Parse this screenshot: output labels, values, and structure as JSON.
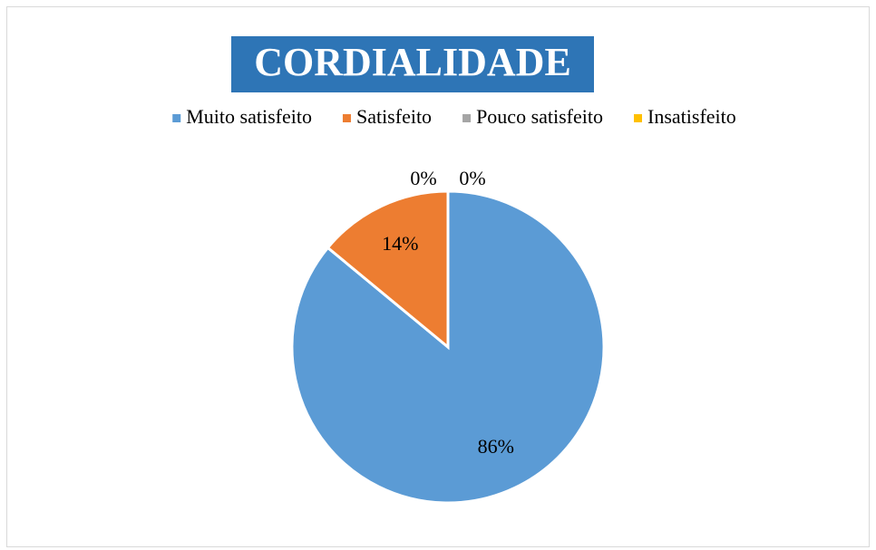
{
  "chart_data": {
    "type": "pie",
    "title": "CORDIALIDADE",
    "categories": [
      "Muito satisfeito",
      "Satisfeito",
      "Pouco satisfeito",
      "Insatisfeito"
    ],
    "values": [
      86,
      14,
      0,
      0
    ],
    "value_labels": [
      "86%",
      "14%",
      "0%",
      "0%"
    ],
    "colors": [
      "#5b9bd5",
      "#ed7d31",
      "#a5a5a5",
      "#ffc000"
    ],
    "legend": "top"
  }
}
